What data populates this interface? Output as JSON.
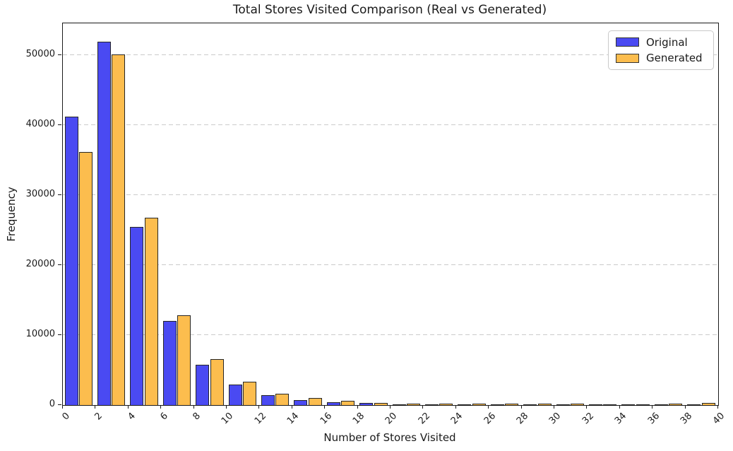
{
  "chart_data": {
    "type": "bar",
    "title": "Total Stores Visited Comparison (Real vs Generated)",
    "xlabel": "Number of Stores Visited",
    "ylabel": "Frequency",
    "categories": [
      "0-2",
      "2-4",
      "4-6",
      "6-8",
      "8-10",
      "10-12",
      "12-14",
      "14-16",
      "16-18",
      "18-20",
      "20-22",
      "22-24",
      "24-26",
      "26-28",
      "28-30",
      "30-32",
      "32-34",
      "34-36",
      "36-38",
      "38-40"
    ],
    "series": [
      {
        "name": "Original",
        "color": "#4a4af2",
        "values": [
          41200,
          51900,
          25400,
          12000,
          5800,
          2900,
          1400,
          700,
          400,
          300,
          120,
          60,
          40,
          30,
          25,
          20,
          60,
          15,
          40,
          30
        ]
      },
      {
        "name": "Generated",
        "color": "#fcbd4e",
        "values": [
          36100,
          50100,
          26700,
          12800,
          6600,
          3300,
          1600,
          1000,
          600,
          280,
          250,
          230,
          250,
          230,
          230,
          230,
          150,
          150,
          230,
          300
        ]
      }
    ],
    "x_ticks": [
      0,
      2,
      4,
      6,
      8,
      10,
      12,
      14,
      16,
      18,
      20,
      22,
      24,
      26,
      28,
      30,
      32,
      34,
      36,
      38,
      40
    ],
    "y_ticks": [
      0,
      10000,
      20000,
      30000,
      40000,
      50000
    ],
    "xlim": [
      0,
      40
    ],
    "ylim": [
      0,
      54500
    ],
    "grid": "horizontal-dashed",
    "legend_position": "upper-right",
    "bar_edge_color": "#262626"
  }
}
